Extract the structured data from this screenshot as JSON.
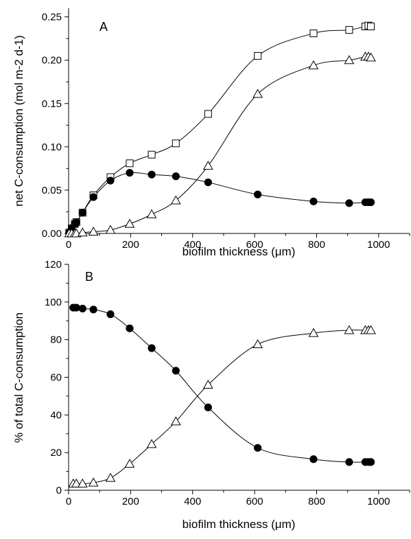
{
  "chart_data": [
    {
      "type": "line",
      "panel_label": "A",
      "xlabel": "biofilm thickness (μm)",
      "ylabel": "net C-consumption (mol m-2 d-1)",
      "xlim": [
        0,
        1100
      ],
      "ylim": [
        0,
        0.26
      ],
      "xticks": [
        0,
        200,
        400,
        600,
        800,
        1000
      ],
      "yticks": [
        0.0,
        0.05,
        0.1,
        0.15,
        0.2,
        0.25
      ],
      "ytick_labels": [
        "0.00",
        "0.05",
        "0.10",
        "0.15",
        "0.20",
        "0.25"
      ],
      "series": [
        {
          "marker": "square-open",
          "x": [
            2,
            10,
            20,
            25,
            45,
            80,
            135,
            197,
            268,
            346,
            450,
            610,
            790,
            905,
            957,
            967,
            975
          ],
          "y": [
            0.001,
            0.006,
            0.011,
            0.013,
            0.024,
            0.044,
            0.065,
            0.081,
            0.091,
            0.104,
            0.138,
            0.205,
            0.231,
            0.235,
            0.239,
            0.24,
            0.239
          ]
        },
        {
          "marker": "circle-filled",
          "x": [
            2,
            10,
            20,
            25,
            45,
            80,
            135,
            197,
            268,
            346,
            450,
            610,
            790,
            905,
            957,
            967,
            975
          ],
          "y": [
            0.001,
            0.006,
            0.011,
            0.013,
            0.024,
            0.042,
            0.061,
            0.07,
            0.068,
            0.066,
            0.059,
            0.045,
            0.037,
            0.035,
            0.036,
            0.036,
            0.036
          ]
        },
        {
          "marker": "triangle-open",
          "x": [
            2,
            10,
            20,
            25,
            45,
            80,
            135,
            197,
            268,
            346,
            450,
            610,
            790,
            905,
            957,
            967,
            975
          ],
          "y": [
            0.0,
            0.0,
            0.0,
            0.0,
            0.001,
            0.002,
            0.004,
            0.011,
            0.022,
            0.038,
            0.078,
            0.161,
            0.194,
            0.2,
            0.204,
            0.204,
            0.203
          ]
        }
      ]
    },
    {
      "type": "line",
      "panel_label": "B",
      "xlabel": "biofilm thickness (μm)",
      "ylabel": "% of total C-consumption",
      "xlim": [
        0,
        1100
      ],
      "ylim": [
        0,
        120
      ],
      "xticks": [
        0,
        200,
        400,
        600,
        800,
        1000
      ],
      "yticks": [
        0,
        20,
        40,
        60,
        80,
        100,
        120
      ],
      "ytick_labels": [
        "0",
        "20",
        "40",
        "60",
        "80",
        "100",
        "120"
      ],
      "series": [
        {
          "marker": "circle-filled",
          "x": [
            15,
            25,
            45,
            80,
            135,
            197,
            268,
            346,
            450,
            610,
            790,
            905,
            957,
            967,
            975
          ],
          "y": [
            97,
            97,
            96.5,
            96,
            93.5,
            86,
            75.5,
            63.5,
            44,
            22.5,
            16.5,
            15,
            15,
            15,
            15
          ]
        },
        {
          "marker": "triangle-open",
          "x": [
            15,
            25,
            45,
            80,
            135,
            197,
            268,
            346,
            450,
            610,
            790,
            905,
            957,
            967,
            975
          ],
          "y": [
            3.5,
            3.5,
            3.5,
            4,
            6.5,
            14,
            24.5,
            36.5,
            56,
            77.5,
            83.5,
            85,
            85,
            85,
            85
          ]
        }
      ]
    }
  ]
}
